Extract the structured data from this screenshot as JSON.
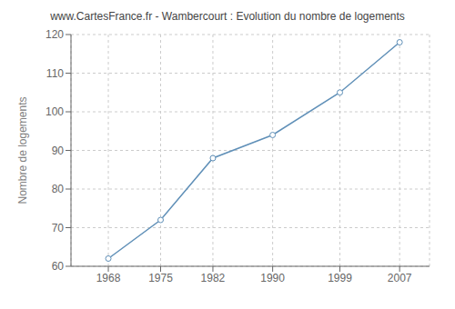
{
  "chart_data": {
    "type": "line",
    "title": "www.CartesFrance.fr - Wambercourt : Evolution du nombre de logements",
    "ylabel": "Nombre de logements",
    "x": [
      1968,
      1975,
      1982,
      1990,
      1999,
      2007
    ],
    "values": [
      62,
      72,
      88,
      94,
      105,
      118
    ],
    "color": "#6090b8",
    "marker": "circle",
    "xlim": [
      1963,
      2011
    ],
    "xticks": [
      1968,
      1975,
      1982,
      1990,
      1999,
      2007
    ],
    "ylim": [
      60,
      120
    ],
    "yticks": [
      60,
      70,
      80,
      90,
      100,
      110,
      120
    ],
    "grid": true
  }
}
